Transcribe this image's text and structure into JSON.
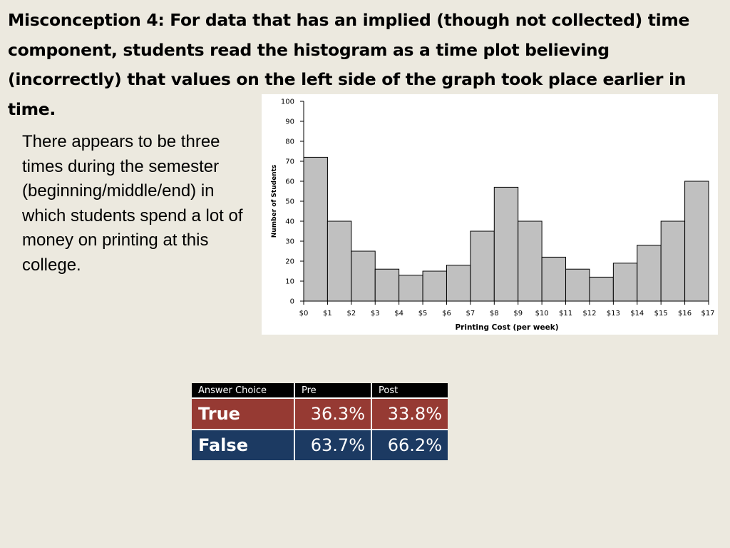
{
  "slide": {
    "title": "Misconception 4: For data that has an implied (though not collected) time component, students read the histogram as a time plot believing (incorrectly) that values on the left side of the graph took place earlier in time.",
    "body": "There appears to be three times during the semester (beginning/middle/end) in which students spend a lot of money on printing at this college."
  },
  "chart_data": {
    "type": "bar",
    "xlabel": "Printing Cost (per week)",
    "ylabel": "Number of Students",
    "ylim": [
      0,
      100
    ],
    "yticks": [
      0,
      10,
      20,
      30,
      40,
      50,
      60,
      70,
      80,
      90,
      100
    ],
    "xticks": [
      "$0",
      "$1",
      "$2",
      "$3",
      "$4",
      "$5",
      "$6",
      "$7",
      "$8",
      "$9",
      "$10",
      "$11",
      "$12",
      "$13",
      "$14",
      "$15",
      "$16",
      "$17"
    ],
    "values": [
      72,
      40,
      25,
      16,
      13,
      15,
      18,
      35,
      57,
      40,
      22,
      16,
      12,
      19,
      28,
      40,
      60
    ],
    "bar_color": "#c0c0c0",
    "grid": false
  },
  "table": {
    "headers": [
      "Answer Choice",
      "Pre",
      "Post"
    ],
    "rows": [
      {
        "label": "True",
        "pre": "36.3%",
        "post": "33.8%"
      },
      {
        "label": "False",
        "pre": "63.7%",
        "post": "66.2%"
      }
    ],
    "colors": {
      "true": "#963a33",
      "false": "#1c3a62",
      "header": "#000000"
    }
  }
}
